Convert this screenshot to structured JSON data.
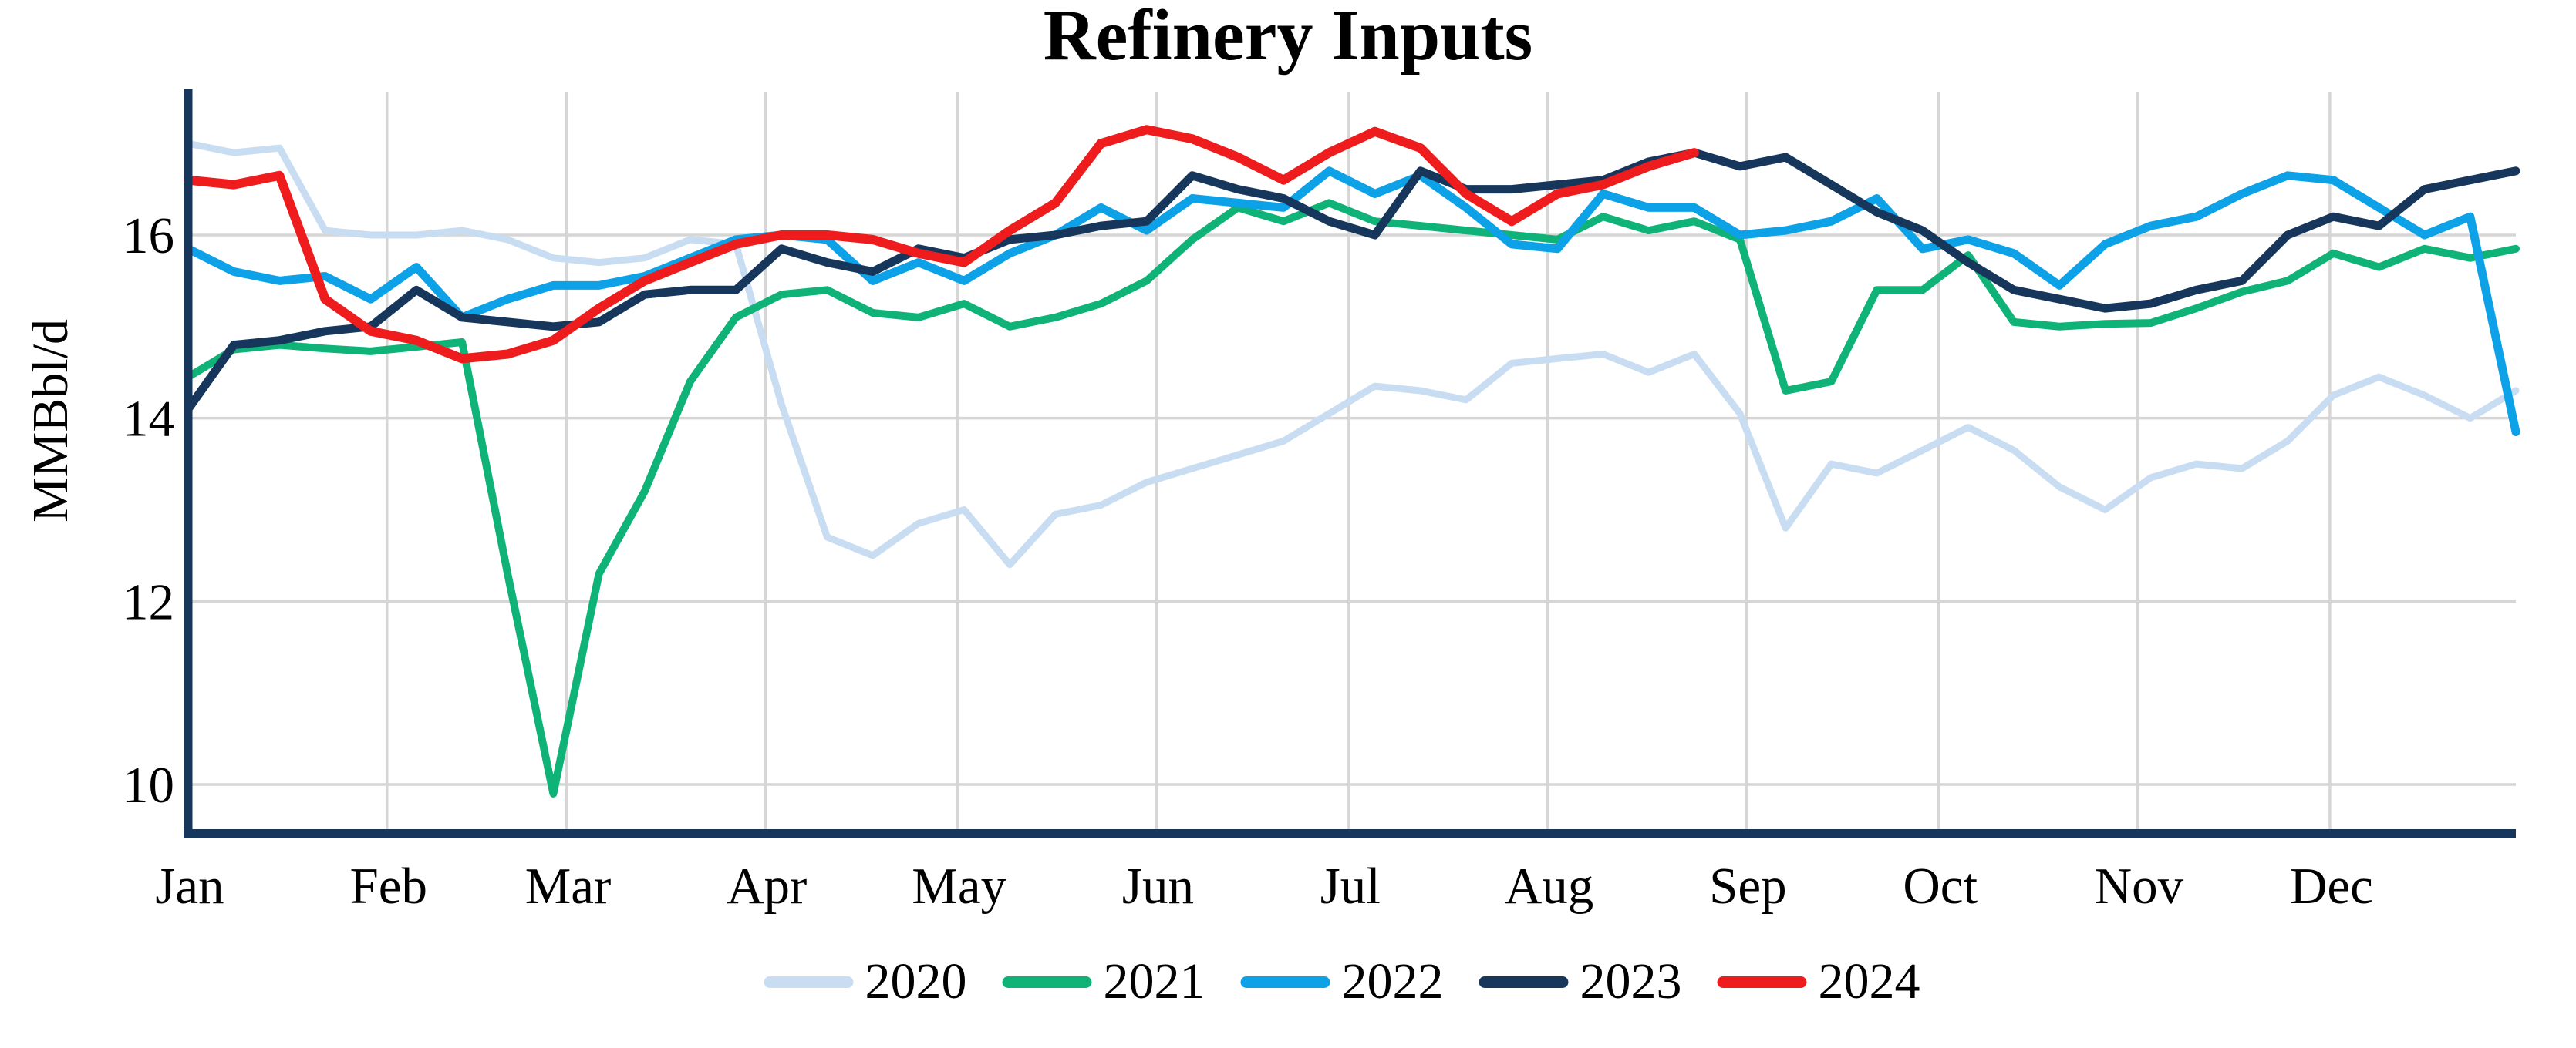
{
  "title": "Refinery Inputs",
  "y_axis": {
    "label": "MMBbl/d",
    "ticks": [
      10,
      12,
      14,
      16
    ]
  },
  "x_axis": {
    "months": [
      "Jan",
      "Feb",
      "Mar",
      "Apr",
      "May",
      "Jun",
      "Jul",
      "Aug",
      "Sep",
      "Oct",
      "Nov",
      "Dec"
    ]
  },
  "colors": {
    "axis": "#16365c",
    "gridline": "#d6d6d6",
    "background": "#ffffff",
    "text": "#000000"
  },
  "chart_data": {
    "type": "line",
    "title": "Refinery Inputs",
    "xlabel": "",
    "ylabel": "MMBbl/d",
    "x_unit": "week of year (weekly data, Jan through Dec)",
    "ylim": [
      9.45,
      17.56
    ],
    "yticks": [
      10,
      12,
      14,
      16
    ],
    "grid": true,
    "legend_position": "bottom",
    "month_tick_labels": [
      "Jan",
      "Feb",
      "Mar",
      "Apr",
      "May",
      "Jun",
      "Jul",
      "Aug",
      "Sep",
      "Oct",
      "Nov",
      "Dec"
    ],
    "series": [
      {
        "name": "2020",
        "color": "#c9ddf2",
        "line_width": 9,
        "values": [
          17.0,
          16.9,
          16.95,
          16.05,
          16.0,
          16.0,
          16.05,
          15.95,
          15.75,
          15.7,
          15.75,
          15.95,
          15.9,
          14.15,
          12.7,
          12.5,
          12.85,
          13.0,
          12.4,
          12.95,
          13.05,
          13.3,
          13.45,
          13.6,
          13.75,
          14.05,
          14.35,
          14.3,
          14.2,
          14.6,
          14.65,
          14.7,
          14.5,
          14.7,
          14.05,
          12.8,
          13.5,
          13.4,
          13.65,
          13.9,
          13.65,
          13.25,
          13.0,
          13.35,
          13.5,
          13.45,
          13.75,
          14.25,
          14.45,
          14.25,
          14.0,
          14.3
        ]
      },
      {
        "name": "2021",
        "color": "#10b377",
        "line_width": 10,
        "values": [
          14.45,
          14.75,
          14.8,
          14.76,
          14.73,
          14.78,
          14.83,
          12.3,
          9.9,
          12.3,
          13.2,
          14.4,
          15.1,
          15.35,
          15.4,
          15.15,
          15.1,
          15.25,
          15.0,
          15.1,
          15.25,
          15.5,
          15.95,
          16.3,
          16.15,
          16.35,
          16.15,
          16.1,
          16.05,
          16.0,
          15.95,
          16.2,
          16.05,
          16.15,
          15.95,
          14.3,
          14.4,
          15.4,
          15.4,
          15.78,
          15.05,
          15.0,
          15.03,
          15.04,
          15.2,
          15.38,
          15.5,
          15.8,
          15.65,
          15.85,
          15.75,
          15.85
        ]
      },
      {
        "name": "2022",
        "color": "#0da2e7",
        "line_width": 11,
        "values": [
          15.85,
          15.6,
          15.5,
          15.55,
          15.3,
          15.65,
          15.1,
          15.3,
          15.45,
          15.45,
          15.55,
          15.75,
          15.95,
          16.0,
          15.95,
          15.5,
          15.7,
          15.5,
          15.8,
          16.0,
          16.3,
          16.05,
          16.4,
          16.35,
          16.3,
          16.7,
          16.45,
          16.65,
          16.3,
          15.9,
          15.85,
          16.45,
          16.3,
          16.3,
          16.0,
          16.05,
          16.15,
          16.4,
          15.85,
          15.95,
          15.8,
          15.45,
          15.9,
          16.1,
          16.2,
          16.45,
          16.65,
          16.6,
          16.3,
          16.0,
          16.2,
          13.85
        ]
      },
      {
        "name": "2023",
        "color": "#16365c",
        "line_width": 11,
        "values": [
          14.1,
          14.8,
          14.85,
          14.95,
          15.0,
          15.4,
          15.1,
          15.05,
          15.0,
          15.05,
          15.35,
          15.4,
          15.4,
          15.85,
          15.7,
          15.6,
          15.85,
          15.75,
          15.95,
          16.0,
          16.1,
          16.15,
          16.65,
          16.5,
          16.4,
          16.15,
          16.0,
          16.7,
          16.5,
          16.5,
          16.55,
          16.6,
          16.8,
          16.9,
          16.75,
          16.85,
          16.55,
          16.25,
          16.05,
          15.7,
          15.4,
          15.3,
          15.2,
          15.25,
          15.4,
          15.5,
          16.0,
          16.2,
          16.1,
          16.5,
          16.6,
          16.7
        ]
      },
      {
        "name": "2024",
        "color": "#ee1c1c",
        "line_width": 12,
        "values": [
          16.6,
          16.55,
          16.65,
          15.3,
          14.95,
          14.85,
          14.65,
          14.7,
          14.85,
          15.2,
          15.5,
          15.7,
          15.9,
          16.0,
          16.0,
          15.95,
          15.8,
          15.7,
          16.05,
          16.35,
          17.0,
          17.15,
          17.05,
          16.85,
          16.6,
          16.9,
          17.13,
          16.95,
          16.45,
          16.15,
          16.45,
          16.55,
          16.75,
          16.9
        ]
      }
    ]
  }
}
